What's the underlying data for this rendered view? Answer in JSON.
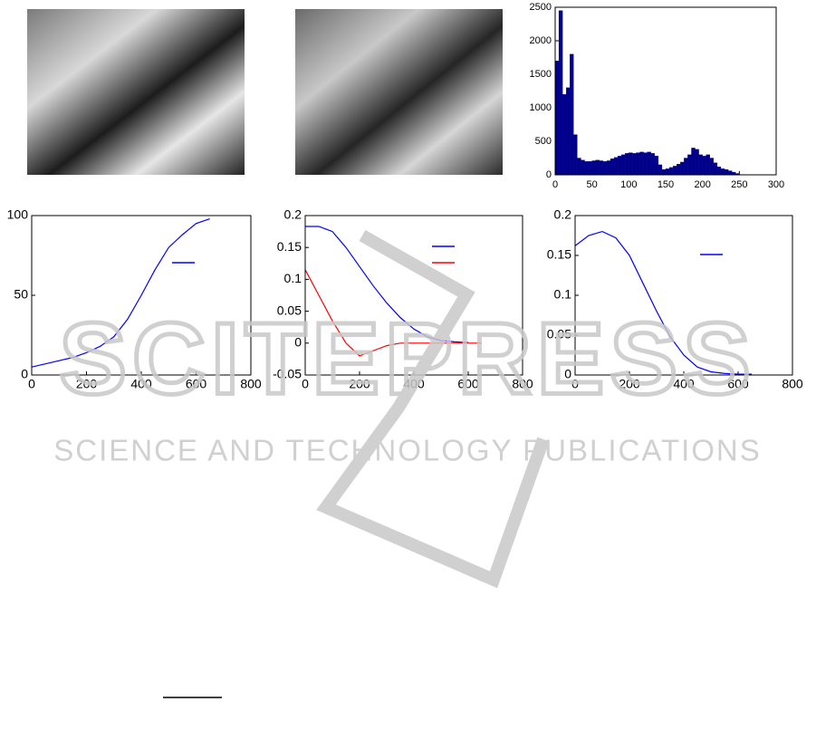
{
  "watermark": {
    "title": "SCITEPRESS",
    "subtitle": "SCIENCE AND TECHNOLOGY PUBLICATIONS"
  },
  "chart_data": [
    {
      "type": "histogram",
      "color": "#00008b",
      "bins": [
        0,
        5,
        10,
        15,
        20,
        25,
        30,
        35,
        40,
        45,
        50,
        55,
        60,
        65,
        70,
        75,
        80,
        85,
        90,
        95,
        100,
        105,
        110,
        115,
        120,
        125,
        130,
        135,
        140,
        145,
        150,
        155,
        160,
        165,
        170,
        175,
        180,
        185,
        190,
        195,
        200,
        205,
        210,
        215,
        220,
        225,
        230,
        235,
        240,
        245,
        250,
        255
      ],
      "counts": [
        1700,
        2450,
        1200,
        1300,
        1800,
        600,
        250,
        220,
        200,
        200,
        210,
        220,
        210,
        200,
        210,
        240,
        260,
        280,
        300,
        320,
        330,
        320,
        330,
        340,
        330,
        340,
        320,
        280,
        150,
        80,
        90,
        110,
        130,
        160,
        190,
        250,
        300,
        400,
        380,
        300,
        280,
        300,
        250,
        180,
        120,
        90,
        80,
        60,
        40,
        20,
        5
      ],
      "xlim": [
        0,
        300
      ],
      "xticks": [
        0,
        50,
        100,
        150,
        200,
        250,
        300
      ],
      "ylim": [
        0,
        2500
      ],
      "yticks": [
        0,
        500,
        1000,
        1500,
        2000,
        2500
      ]
    },
    {
      "type": "line",
      "series": [
        {
          "color": "#0000ff",
          "x": [
            0,
            50,
            100,
            150,
            200,
            250,
            300,
            350,
            400,
            450,
            500,
            550,
            600,
            650
          ],
          "values": [
            5,
            7,
            9,
            11,
            14,
            18,
            24,
            35,
            50,
            66,
            80,
            88,
            95,
            98
          ]
        }
      ],
      "xlim": [
        0,
        800
      ],
      "xticks": [
        0,
        200,
        400,
        600,
        800
      ],
      "ylim": [
        0,
        100
      ],
      "yticks": [
        0,
        50,
        100
      ]
    },
    {
      "type": "line",
      "series": [
        {
          "color": "#0000ff",
          "x": [
            0,
            50,
            100,
            150,
            200,
            250,
            300,
            350,
            400,
            450,
            500,
            550,
            600
          ],
          "values": [
            0.183,
            0.183,
            0.175,
            0.15,
            0.12,
            0.09,
            0.063,
            0.04,
            0.022,
            0.01,
            0.004,
            0.002,
            0.001
          ]
        },
        {
          "color": "#ff0000",
          "x": [
            0,
            50,
            100,
            150,
            200,
            250,
            300,
            350,
            400,
            450,
            500,
            550,
            600,
            650
          ],
          "values": [
            0.115,
            0.075,
            0.035,
            0.0,
            -0.02,
            -0.012,
            -0.004,
            0,
            0,
            0,
            0,
            0,
            0,
            0
          ]
        }
      ],
      "xlim": [
        0,
        800
      ],
      "xticks": [
        0,
        200,
        400,
        600,
        800
      ],
      "ylim": [
        -0.05,
        0.2
      ],
      "yticks": [
        -0.05,
        0,
        0.05,
        0.1,
        0.15,
        0.2
      ]
    },
    {
      "type": "line",
      "series": [
        {
          "color": "#0000ff",
          "x": [
            0,
            50,
            100,
            150,
            200,
            250,
            300,
            350,
            400,
            450,
            500,
            550,
            600,
            650
          ],
          "values": [
            0.162,
            0.175,
            0.18,
            0.172,
            0.15,
            0.115,
            0.08,
            0.048,
            0.025,
            0.01,
            0.004,
            0.002,
            0.001,
            0.001
          ]
        }
      ],
      "xlim": [
        0,
        800
      ],
      "xticks": [
        0,
        200,
        400,
        600,
        800
      ],
      "ylim": [
        0,
        0.2
      ],
      "yticks": [
        0,
        0.05,
        0.1,
        0.15,
        0.2
      ]
    }
  ]
}
